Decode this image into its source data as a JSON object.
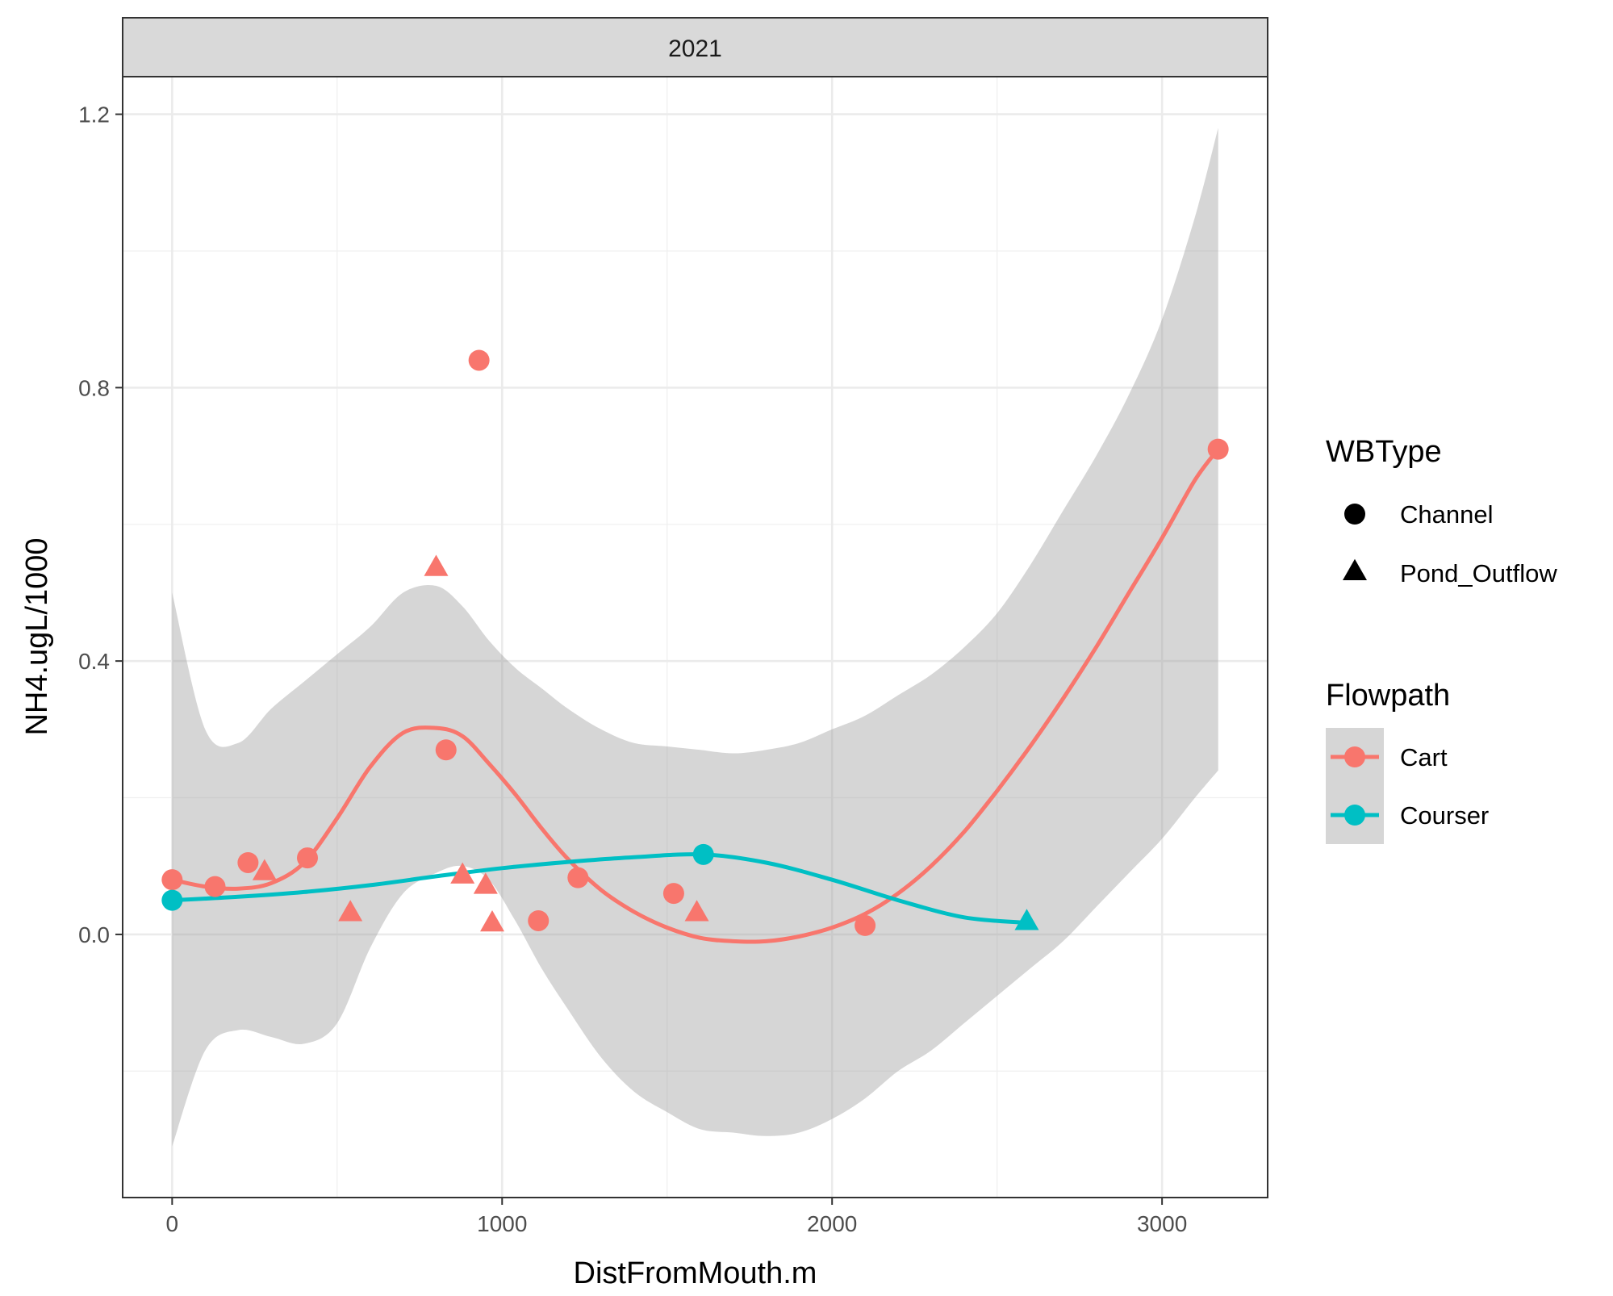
{
  "chart_data": {
    "type": "scatter",
    "facet_label": "2021",
    "xlabel": "DistFromMouth.m",
    "ylabel": "NH4.ugL/1000",
    "xlim": [
      -150,
      3320
    ],
    "ylim": [
      -0.385,
      1.255
    ],
    "x_ticks": [
      0,
      1000,
      2000,
      3000
    ],
    "x_tick_labels": [
      "0",
      "1000",
      "2000",
      "3000"
    ],
    "y_ticks": [
      0.0,
      0.4,
      0.8,
      1.2
    ],
    "y_tick_labels": [
      "0.0",
      "0.4",
      "0.8",
      "1.2"
    ],
    "grid": true,
    "legend_placement": "right",
    "shape_legend": {
      "title": "WBType",
      "entries": [
        {
          "label": "Channel",
          "shape": "circle"
        },
        {
          "label": "Pond_Outflow",
          "shape": "triangle"
        }
      ]
    },
    "color_legend": {
      "title": "Flowpath",
      "entries": [
        {
          "label": "Cart",
          "color": "#F8766D"
        },
        {
          "label": "Courser",
          "color": "#00BFC4"
        }
      ]
    },
    "series": [
      {
        "name": "Cart",
        "color": "#F8766D",
        "points": [
          {
            "x": 0,
            "y": 0.08,
            "shape": "circle"
          },
          {
            "x": 130,
            "y": 0.07,
            "shape": "circle"
          },
          {
            "x": 230,
            "y": 0.105,
            "shape": "circle"
          },
          {
            "x": 410,
            "y": 0.112,
            "shape": "circle"
          },
          {
            "x": 830,
            "y": 0.27,
            "shape": "circle"
          },
          {
            "x": 930,
            "y": 0.84,
            "shape": "circle"
          },
          {
            "x": 1110,
            "y": 0.02,
            "shape": "circle"
          },
          {
            "x": 1230,
            "y": 0.083,
            "shape": "circle"
          },
          {
            "x": 1520,
            "y": 0.06,
            "shape": "circle"
          },
          {
            "x": 2100,
            "y": 0.013,
            "shape": "circle"
          },
          {
            "x": 3170,
            "y": 0.71,
            "shape": "circle"
          },
          {
            "x": 280,
            "y": 0.09,
            "shape": "triangle"
          },
          {
            "x": 540,
            "y": 0.03,
            "shape": "triangle"
          },
          {
            "x": 800,
            "y": 0.535,
            "shape": "triangle"
          },
          {
            "x": 880,
            "y": 0.085,
            "shape": "triangle"
          },
          {
            "x": 950,
            "y": 0.07,
            "shape": "triangle"
          },
          {
            "x": 970,
            "y": 0.015,
            "shape": "triangle"
          },
          {
            "x": 1590,
            "y": 0.03,
            "shape": "triangle"
          }
        ],
        "smooth": {
          "x": [
            0,
            100,
            200,
            300,
            400,
            500,
            600,
            700,
            800,
            880,
            960,
            1040,
            1120,
            1200,
            1300,
            1400,
            1500,
            1600,
            1700,
            1800,
            1900,
            2000,
            2100,
            2200,
            2300,
            2400,
            2500,
            2600,
            2700,
            2800,
            2900,
            3000,
            3100,
            3170
          ],
          "y": [
            0.08,
            0.07,
            0.067,
            0.075,
            0.105,
            0.17,
            0.245,
            0.295,
            0.302,
            0.29,
            0.25,
            0.205,
            0.155,
            0.11,
            0.065,
            0.033,
            0.01,
            -0.005,
            -0.01,
            -0.01,
            -0.003,
            0.01,
            0.03,
            0.06,
            0.1,
            0.15,
            0.21,
            0.275,
            0.345,
            0.42,
            0.5,
            0.58,
            0.665,
            0.71
          ],
          "upper": [
            0.5,
            0.3,
            0.28,
            0.33,
            0.37,
            0.41,
            0.45,
            0.5,
            0.51,
            0.48,
            0.43,
            0.39,
            0.36,
            0.33,
            0.3,
            0.28,
            0.275,
            0.27,
            0.265,
            0.27,
            0.28,
            0.3,
            0.32,
            0.35,
            0.38,
            0.42,
            0.47,
            0.54,
            0.62,
            0.7,
            0.79,
            0.9,
            1.05,
            1.18
          ],
          "lower": [
            -0.31,
            -0.17,
            -0.14,
            -0.15,
            -0.16,
            -0.13,
            -0.02,
            0.06,
            0.09,
            0.1,
            0.08,
            0.02,
            -0.05,
            -0.11,
            -0.18,
            -0.23,
            -0.26,
            -0.285,
            -0.29,
            -0.295,
            -0.29,
            -0.27,
            -0.24,
            -0.2,
            -0.17,
            -0.13,
            -0.09,
            -0.05,
            -0.01,
            0.04,
            0.09,
            0.14,
            0.2,
            0.24
          ]
        }
      },
      {
        "name": "Courser",
        "color": "#00BFC4",
        "points": [
          {
            "x": 0,
            "y": 0.05,
            "shape": "circle"
          },
          {
            "x": 1610,
            "y": 0.117,
            "shape": "circle"
          },
          {
            "x": 2590,
            "y": 0.017,
            "shape": "triangle"
          }
        ],
        "smooth": {
          "x": [
            0,
            200,
            400,
            600,
            800,
            1000,
            1200,
            1400,
            1610,
            1800,
            2000,
            2200,
            2400,
            2590
          ],
          "y": [
            0.05,
            0.055,
            0.062,
            0.072,
            0.085,
            0.097,
            0.106,
            0.113,
            0.117,
            0.105,
            0.08,
            0.05,
            0.025,
            0.017
          ]
        }
      }
    ]
  }
}
